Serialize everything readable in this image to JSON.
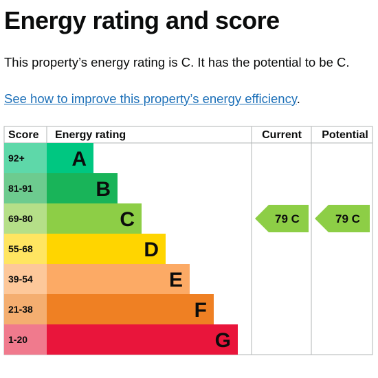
{
  "heading": "Energy rating and score",
  "summary": "This property’s energy rating is C. It has the potential to be C.",
  "improve_link": "See how to improve this property’s energy efficiency",
  "improve_link_suffix": ".",
  "table": {
    "col_score": "Score",
    "col_rating": "Energy rating",
    "col_current": "Current",
    "col_potential": "Potential"
  },
  "bands": [
    {
      "score": "92+",
      "letter": "A",
      "color": "#00c781",
      "score_bg": "#5ed8a9"
    },
    {
      "score": "81-91",
      "letter": "B",
      "color": "#19b459",
      "score_bg": "#6dcb8f"
    },
    {
      "score": "69-80",
      "letter": "C",
      "color": "#8dce46",
      "score_bg": "#b5df88"
    },
    {
      "score": "55-68",
      "letter": "D",
      "color": "#ffd500",
      "score_bg": "#ffe561"
    },
    {
      "score": "39-54",
      "letter": "E",
      "color": "#fcaa65",
      "score_bg": "#fdc89a"
    },
    {
      "score": "21-38",
      "letter": "F",
      "color": "#ef8023",
      "score_bg": "#f4ae70"
    },
    {
      "score": "1-20",
      "letter": "G",
      "color": "#e9153b",
      "score_bg": "#f07a8d"
    }
  ],
  "current": {
    "value": 79,
    "letter": "C",
    "label": "79 C",
    "band": 2
  },
  "potential": {
    "value": 79,
    "letter": "C",
    "label": "79 C",
    "band": 2
  },
  "colors": {
    "link": "#1d70b8",
    "text": "#0b0c0c",
    "grid": "#b1b4b6"
  }
}
